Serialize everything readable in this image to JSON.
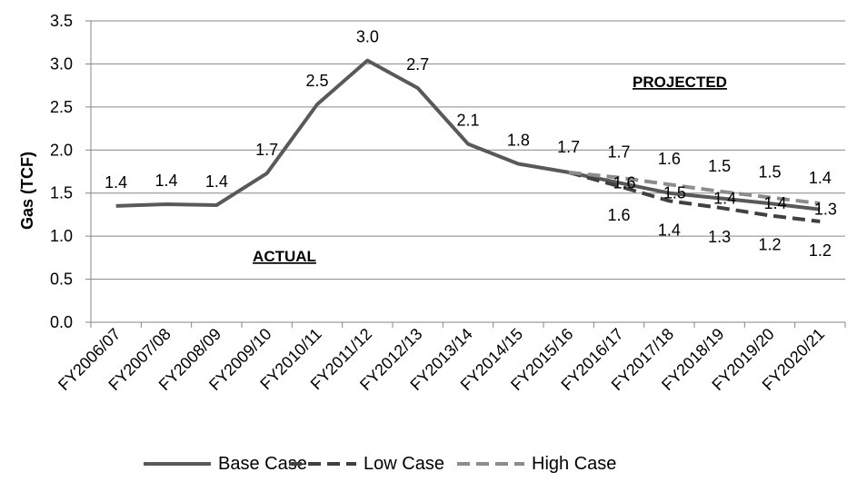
{
  "chart_data": {
    "type": "line",
    "title": "",
    "xlabel": "",
    "ylabel": "Gas (TCF)",
    "ylim": [
      0,
      3.5
    ],
    "yticks": [
      "0.0",
      "0.5",
      "1.0",
      "1.5",
      "2.0",
      "2.5",
      "3.0",
      "3.5"
    ],
    "grid": true,
    "legend_position": "bottom",
    "categories": [
      "FY2006/07",
      "FY2007/08",
      "FY2008/09",
      "FY2009/10",
      "FY2010/11",
      "FY2011/12",
      "FY2012/13",
      "FY2013/14",
      "FY2014/15",
      "FY2015/16",
      "FY2016/17",
      "FY2017/18",
      "FY2018/19",
      "FY2019/20",
      "FY2020/21"
    ],
    "annotations": [
      "ACTUAL",
      "PROJECTED"
    ],
    "series": [
      {
        "name": "Base Case",
        "style": "solid",
        "color": "#595959",
        "values": [
          1.35,
          1.37,
          1.36,
          1.73,
          2.53,
          3.04,
          2.72,
          2.07,
          1.84,
          1.74,
          1.62,
          1.5,
          1.44,
          1.38,
          1.31
        ],
        "labels": [
          "1.4",
          "1.4",
          "1.4",
          "1.7",
          "2.5",
          "3.0",
          "2.7",
          "2.1",
          "1.8",
          "1.7",
          "1.6",
          "1.5",
          "1.4",
          "1.4",
          "1.3"
        ]
      },
      {
        "name": "Low Case",
        "style": "dashed",
        "color": "#404040",
        "values": [
          null,
          null,
          null,
          null,
          null,
          null,
          null,
          null,
          null,
          1.74,
          1.58,
          1.41,
          1.33,
          1.24,
          1.17
        ],
        "labels": [
          "",
          "",
          "",
          "",
          "",
          "",
          "",
          "",
          "",
          "1.7",
          "1.6",
          "1.4",
          "1.3",
          "1.2",
          "1.2"
        ]
      },
      {
        "name": "High Case",
        "style": "dashed",
        "color": "#8c8c8c",
        "values": [
          null,
          null,
          null,
          null,
          null,
          null,
          null,
          null,
          null,
          1.74,
          1.68,
          1.6,
          1.52,
          1.45,
          1.38
        ],
        "labels": [
          "",
          "",
          "",
          "",
          "",
          "",
          "",
          "",
          "",
          "1.7",
          "1.7",
          "1.6",
          "1.5",
          "1.5",
          "1.4"
        ]
      }
    ]
  }
}
